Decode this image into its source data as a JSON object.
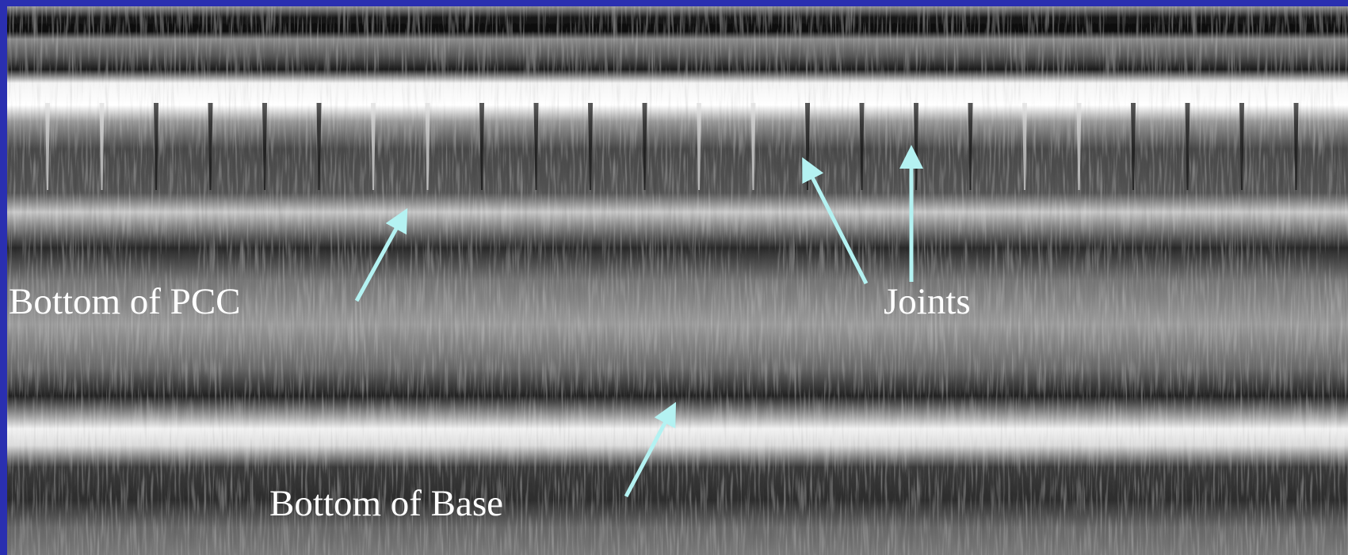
{
  "labels": {
    "pcc": "Bottom of PCC",
    "joints": "Joints",
    "base": "Bottom of Base"
  }
}
